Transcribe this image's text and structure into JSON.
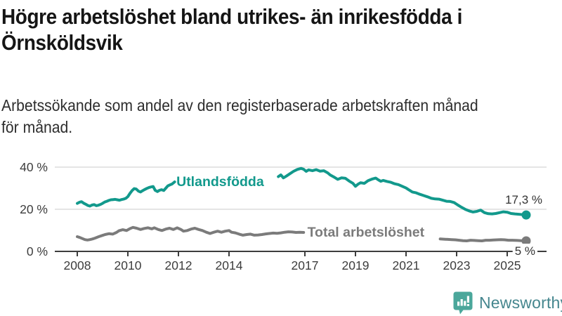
{
  "header": {
    "title_line1": "Högre arbetslöshet bland utrikes- än inrikesfödda i",
    "title_line2": "Örnsköldsvik",
    "subtitle_line1": "Arbetssökande som andel av den registerbaserade arbetskraften månad",
    "subtitle_line2": "för månad."
  },
  "branding": {
    "logo_text": "Newsworthy",
    "icon_color": "#4BA79B",
    "text_color": "#45868E"
  },
  "chart_data": {
    "type": "line",
    "title": "Högre arbetslöshet bland utrikes- än inrikesfödda i Örnsköldsvik",
    "subtitle": "Arbetssökande som andel av den registerbaserade arbetskraften månad för månad.",
    "unit": "%",
    "grid": "horizontal",
    "legend": "inline-labels",
    "x_axis": {
      "ticks": [
        2008,
        2010,
        2012,
        2014,
        2017,
        2019,
        2021,
        2023,
        2025
      ],
      "range": [
        2007.1,
        2026.6
      ],
      "axis_color": "#3d3d3d",
      "grid_color": "#d5d5d5"
    },
    "y_axis": {
      "tick_values": [
        0,
        20,
        40
      ],
      "tick_labels": [
        "0 %",
        "20 %",
        "40 %"
      ],
      "range": [
        0,
        46
      ]
    },
    "series": [
      {
        "name": "Utlandsfödda",
        "color": "#12998C",
        "end_label": "17,3 %",
        "end_value": 17.3,
        "label_anchor": {
          "year": 2011.92,
          "value": 33.3
        },
        "end_label_offset": {
          "dx": 23,
          "dy": -16,
          "anchor": "end",
          "bg": false
        },
        "segments": [
          [
            [
              2008.0,
              22.8
            ],
            [
              2008.08,
              23.3
            ],
            [
              2008.17,
              23.6
            ],
            [
              2008.25,
              22.9
            ],
            [
              2008.33,
              22.4
            ],
            [
              2008.42,
              21.8
            ],
            [
              2008.5,
              21.5
            ],
            [
              2008.58,
              22.0
            ],
            [
              2008.67,
              22.2
            ],
            [
              2008.75,
              21.7
            ],
            [
              2008.83,
              21.9
            ],
            [
              2008.92,
              22.3
            ],
            [
              2009.0,
              22.8
            ],
            [
              2009.08,
              23.4
            ],
            [
              2009.17,
              23.8
            ],
            [
              2009.25,
              24.2
            ],
            [
              2009.33,
              24.5
            ],
            [
              2009.42,
              24.6
            ],
            [
              2009.5,
              24.7
            ],
            [
              2009.58,
              24.5
            ],
            [
              2009.67,
              24.3
            ],
            [
              2009.75,
              24.6
            ],
            [
              2009.83,
              24.8
            ],
            [
              2009.92,
              25.2
            ],
            [
              2010.0,
              26.0
            ],
            [
              2010.08,
              27.5
            ],
            [
              2010.17,
              28.9
            ],
            [
              2010.25,
              29.8
            ],
            [
              2010.33,
              29.6
            ],
            [
              2010.42,
              28.6
            ],
            [
              2010.5,
              28.2
            ],
            [
              2010.58,
              28.8
            ],
            [
              2010.67,
              29.4
            ],
            [
              2010.75,
              29.9
            ],
            [
              2010.83,
              30.3
            ],
            [
              2010.92,
              30.6
            ],
            [
              2011.0,
              30.8
            ],
            [
              2011.08,
              29.0
            ],
            [
              2011.17,
              28.4
            ],
            [
              2011.25,
              29.0
            ],
            [
              2011.33,
              29.3
            ],
            [
              2011.42,
              28.9
            ],
            [
              2011.5,
              30.0
            ],
            [
              2011.58,
              31.1
            ],
            [
              2011.67,
              31.6
            ],
            [
              2011.75,
              32.0
            ],
            [
              2011.85,
              33.0
            ]
          ],
          [
            [
              2015.95,
              35.5
            ],
            [
              2016.05,
              36.3
            ],
            [
              2016.15,
              34.9
            ],
            [
              2016.25,
              35.6
            ],
            [
              2016.4,
              36.8
            ],
            [
              2016.55,
              38.0
            ],
            [
              2016.7,
              38.9
            ],
            [
              2016.85,
              39.4
            ],
            [
              2016.95,
              39.0
            ],
            [
              2017.05,
              38.0
            ],
            [
              2017.15,
              38.7
            ],
            [
              2017.3,
              38.3
            ],
            [
              2017.45,
              38.8
            ],
            [
              2017.6,
              38.1
            ],
            [
              2017.75,
              38.3
            ],
            [
              2017.9,
              37.3
            ],
            [
              2018.0,
              36.3
            ],
            [
              2018.15,
              35.3
            ],
            [
              2018.3,
              34.2
            ],
            [
              2018.45,
              34.9
            ],
            [
              2018.6,
              34.7
            ],
            [
              2018.75,
              33.4
            ],
            [
              2018.9,
              32.3
            ],
            [
              2019.0,
              30.9
            ],
            [
              2019.1,
              31.9
            ],
            [
              2019.2,
              32.6
            ],
            [
              2019.35,
              32.3
            ],
            [
              2019.5,
              33.6
            ],
            [
              2019.65,
              34.3
            ],
            [
              2019.8,
              34.8
            ],
            [
              2019.9,
              34.0
            ],
            [
              2020.0,
              33.3
            ],
            [
              2020.1,
              33.7
            ],
            [
              2020.25,
              33.2
            ],
            [
              2020.4,
              32.8
            ],
            [
              2020.55,
              32.1
            ],
            [
              2020.7,
              31.7
            ],
            [
              2020.85,
              30.9
            ],
            [
              2021.0,
              30.1
            ],
            [
              2021.1,
              29.3
            ],
            [
              2021.25,
              28.2
            ],
            [
              2021.4,
              27.8
            ],
            [
              2021.55,
              27.1
            ],
            [
              2021.7,
              26.5
            ],
            [
              2021.85,
              25.9
            ],
            [
              2022.0,
              25.2
            ],
            [
              2022.15,
              24.9
            ],
            [
              2022.3,
              24.8
            ],
            [
              2022.45,
              24.3
            ],
            [
              2022.6,
              23.8
            ],
            [
              2022.75,
              23.7
            ],
            [
              2022.9,
              23.2
            ],
            [
              2023.05,
              22.0
            ],
            [
              2023.2,
              20.9
            ],
            [
              2023.35,
              19.9
            ],
            [
              2023.5,
              19.2
            ],
            [
              2023.65,
              18.7
            ],
            [
              2023.8,
              19.0
            ],
            [
              2023.95,
              19.6
            ],
            [
              2024.1,
              18.4
            ],
            [
              2024.25,
              17.9
            ],
            [
              2024.4,
              17.8
            ],
            [
              2024.55,
              18.0
            ],
            [
              2024.7,
              18.4
            ],
            [
              2024.85,
              18.8
            ],
            [
              2025.0,
              18.6
            ],
            [
              2025.15,
              18.0
            ],
            [
              2025.3,
              17.8
            ],
            [
              2025.5,
              17.6
            ],
            [
              2025.75,
              17.3
            ]
          ]
        ]
      },
      {
        "name": "Total arbetslöshet",
        "color": "#7b7b7b",
        "end_label": "5 %",
        "end_value": 5.0,
        "label_anchor": {
          "year": 2017.1,
          "value": 9.3
        },
        "end_label_offset": {
          "dx": 13,
          "dy": 20,
          "anchor": "end",
          "bg": true
        },
        "segments": [
          [
            [
              2008.0,
              7.0
            ],
            [
              2008.1,
              6.6
            ],
            [
              2008.2,
              6.1
            ],
            [
              2008.3,
              5.6
            ],
            [
              2008.4,
              5.4
            ],
            [
              2008.5,
              5.6
            ],
            [
              2008.6,
              5.9
            ],
            [
              2008.7,
              6.3
            ],
            [
              2008.85,
              7.0
            ],
            [
              2009.0,
              7.6
            ],
            [
              2009.1,
              8.0
            ],
            [
              2009.25,
              8.4
            ],
            [
              2009.4,
              8.2
            ],
            [
              2009.55,
              9.0
            ],
            [
              2009.65,
              9.8
            ],
            [
              2009.8,
              10.3
            ],
            [
              2009.95,
              9.9
            ],
            [
              2010.1,
              10.9
            ],
            [
              2010.2,
              11.4
            ],
            [
              2010.35,
              11.0
            ],
            [
              2010.5,
              10.4
            ],
            [
              2010.65,
              10.9
            ],
            [
              2010.8,
              11.2
            ],
            [
              2010.95,
              10.7
            ],
            [
              2011.05,
              11.2
            ],
            [
              2011.2,
              10.4
            ],
            [
              2011.35,
              9.9
            ],
            [
              2011.5,
              10.6
            ],
            [
              2011.65,
              11.0
            ],
            [
              2011.8,
              10.4
            ],
            [
              2011.95,
              11.2
            ],
            [
              2012.1,
              10.4
            ],
            [
              2012.2,
              9.6
            ],
            [
              2012.35,
              9.9
            ],
            [
              2012.5,
              10.6
            ],
            [
              2012.65,
              11.0
            ],
            [
              2012.8,
              10.4
            ],
            [
              2012.95,
              9.9
            ],
            [
              2013.1,
              9.1
            ],
            [
              2013.25,
              8.5
            ],
            [
              2013.4,
              9.1
            ],
            [
              2013.55,
              9.6
            ],
            [
              2013.7,
              9.1
            ],
            [
              2013.85,
              9.6
            ],
            [
              2014.0,
              9.9
            ],
            [
              2014.1,
              9.1
            ],
            [
              2014.25,
              8.8
            ],
            [
              2014.4,
              8.2
            ],
            [
              2014.55,
              7.7
            ],
            [
              2014.7,
              8.0
            ],
            [
              2014.85,
              8.2
            ],
            [
              2015.0,
              7.7
            ],
            [
              2015.15,
              7.8
            ],
            [
              2015.3,
              8.0
            ],
            [
              2015.45,
              8.3
            ],
            [
              2015.6,
              8.5
            ],
            [
              2015.75,
              8.7
            ],
            [
              2015.9,
              8.6
            ],
            [
              2016.05,
              8.8
            ],
            [
              2016.2,
              9.1
            ],
            [
              2016.35,
              9.3
            ],
            [
              2016.5,
              9.2
            ],
            [
              2016.65,
              9.0
            ],
            [
              2016.8,
              9.1
            ],
            [
              2016.95,
              9.0
            ]
          ],
          [
            [
              2022.35,
              5.9
            ],
            [
              2022.5,
              5.8
            ],
            [
              2022.65,
              5.7
            ],
            [
              2022.8,
              5.6
            ],
            [
              2022.95,
              5.5
            ],
            [
              2023.1,
              5.3
            ],
            [
              2023.25,
              5.1
            ],
            [
              2023.4,
              5.0
            ],
            [
              2023.55,
              5.3
            ],
            [
              2023.7,
              5.2
            ],
            [
              2023.85,
              5.1
            ],
            [
              2024.0,
              5.0
            ],
            [
              2024.15,
              5.3
            ],
            [
              2024.3,
              5.3
            ],
            [
              2024.45,
              5.4
            ],
            [
              2024.6,
              5.5
            ],
            [
              2024.75,
              5.6
            ],
            [
              2024.9,
              5.5
            ],
            [
              2025.05,
              5.3
            ],
            [
              2025.2,
              5.3
            ],
            [
              2025.4,
              5.2
            ],
            [
              2025.55,
              5.1
            ],
            [
              2025.75,
              5.0
            ]
          ]
        ]
      }
    ]
  }
}
